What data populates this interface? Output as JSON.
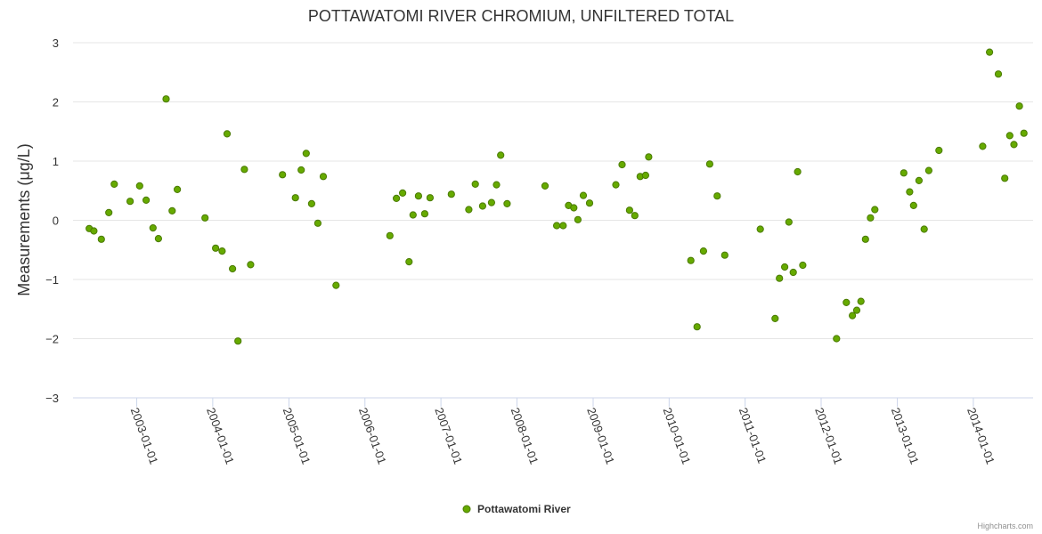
{
  "chart_data": {
    "type": "scatter",
    "title": "POTTAWATOMI RIVER CHROMIUM, UNFILTERED TOTAL",
    "ylabel": "Measurements (μg/L)",
    "xlabel": "",
    "ylim": [
      -3,
      3
    ],
    "yticks": [
      "3",
      "2",
      "1",
      "0",
      "−1",
      "−2",
      "−3"
    ],
    "xlim": [
      "2002-03-01",
      "2014-10-15"
    ],
    "xtick_dates": [
      "2003-01-01",
      "2004-01-01",
      "2005-01-01",
      "2006-01-01",
      "2007-01-01",
      "2008-01-01",
      "2009-01-01",
      "2010-01-01",
      "2011-01-01",
      "2012-01-01",
      "2013-01-01",
      "2014-01-01"
    ],
    "xtick_labels": [
      "2003-01-01",
      "2004-01-01",
      "2005-01-01",
      "2006-01-01",
      "2007-01-01",
      "2008-01-01",
      "2009-01-01",
      "2010-01-01",
      "2011-01-01",
      "2012-01-01",
      "2013-01-01",
      "2014-01-01"
    ],
    "grid": "horizontal",
    "legend_position": "bottom-center",
    "colors": {
      "marker_fill": "#66aa00",
      "marker_stroke": "#4a7a00",
      "grid": "#e6e6e6",
      "axis": "#ccd6eb"
    },
    "series": [
      {
        "name": "Pottawatomi River",
        "points": [
          [
            "2002-05-18",
            -0.14
          ],
          [
            "2002-06-09",
            -0.18
          ],
          [
            "2002-07-15",
            -0.32
          ],
          [
            "2002-08-20",
            0.13
          ],
          [
            "2002-09-15",
            0.61
          ],
          [
            "2002-11-30",
            0.32
          ],
          [
            "2003-01-15",
            0.58
          ],
          [
            "2003-02-15",
            0.34
          ],
          [
            "2003-03-20",
            -0.13
          ],
          [
            "2003-04-15",
            -0.31
          ],
          [
            "2003-05-22",
            2.05
          ],
          [
            "2003-06-20",
            0.16
          ],
          [
            "2003-07-15",
            0.52
          ],
          [
            "2003-11-25",
            0.04
          ],
          [
            "2004-01-15",
            -0.47
          ],
          [
            "2004-02-15",
            -0.52
          ],
          [
            "2004-03-10",
            1.46
          ],
          [
            "2004-04-05",
            -0.82
          ],
          [
            "2004-05-01",
            -2.04
          ],
          [
            "2004-06-01",
            0.86
          ],
          [
            "2004-07-01",
            -0.75
          ],
          [
            "2004-12-01",
            0.77
          ],
          [
            "2005-02-01",
            0.38
          ],
          [
            "2005-03-01",
            0.85
          ],
          [
            "2005-03-25",
            1.13
          ],
          [
            "2005-04-20",
            0.28
          ],
          [
            "2005-05-20",
            -0.05
          ],
          [
            "2005-06-15",
            0.74
          ],
          [
            "2005-08-15",
            -1.1
          ],
          [
            "2006-05-01",
            -0.26
          ],
          [
            "2006-06-01",
            0.37
          ],
          [
            "2006-07-01",
            0.46
          ],
          [
            "2006-08-01",
            -0.7
          ],
          [
            "2006-08-20",
            0.09
          ],
          [
            "2006-09-15",
            0.41
          ],
          [
            "2006-10-15",
            0.11
          ],
          [
            "2006-11-10",
            0.38
          ],
          [
            "2007-02-20",
            0.44
          ],
          [
            "2007-05-15",
            0.18
          ],
          [
            "2007-06-15",
            0.61
          ],
          [
            "2007-07-20",
            0.24
          ],
          [
            "2007-09-01",
            0.3
          ],
          [
            "2007-09-25",
            0.6
          ],
          [
            "2007-10-15",
            1.1
          ],
          [
            "2007-11-15",
            0.28
          ],
          [
            "2008-05-15",
            0.58
          ],
          [
            "2008-07-10",
            -0.09
          ],
          [
            "2008-08-10",
            -0.09
          ],
          [
            "2008-09-05",
            0.25
          ],
          [
            "2008-09-30",
            0.21
          ],
          [
            "2008-10-20",
            0.01
          ],
          [
            "2008-11-15",
            0.42
          ],
          [
            "2008-12-15",
            0.29
          ],
          [
            "2009-04-20",
            0.6
          ],
          [
            "2009-05-20",
            0.94
          ],
          [
            "2009-06-25",
            0.17
          ],
          [
            "2009-07-20",
            0.08
          ],
          [
            "2009-08-15",
            0.74
          ],
          [
            "2009-09-10",
            0.76
          ],
          [
            "2009-09-25",
            1.07
          ],
          [
            "2010-04-15",
            -0.68
          ],
          [
            "2010-05-15",
            -1.8
          ],
          [
            "2010-06-15",
            -0.52
          ],
          [
            "2010-07-15",
            0.95
          ],
          [
            "2010-08-20",
            0.41
          ],
          [
            "2010-09-25",
            -0.59
          ],
          [
            "2011-03-15",
            -0.15
          ],
          [
            "2011-05-25",
            -1.66
          ],
          [
            "2011-06-15",
            -0.98
          ],
          [
            "2011-07-10",
            -0.79
          ],
          [
            "2011-07-30",
            -0.03
          ],
          [
            "2011-08-20",
            -0.88
          ],
          [
            "2011-09-10",
            0.82
          ],
          [
            "2011-10-05",
            -0.76
          ],
          [
            "2012-03-15",
            -2.0
          ],
          [
            "2012-05-01",
            -1.39
          ],
          [
            "2012-05-30",
            -1.61
          ],
          [
            "2012-06-20",
            -1.52
          ],
          [
            "2012-07-10",
            -1.37
          ],
          [
            "2012-08-01",
            -0.32
          ],
          [
            "2012-08-25",
            0.04
          ],
          [
            "2012-09-15",
            0.18
          ],
          [
            "2013-02-01",
            0.8
          ],
          [
            "2013-03-01",
            0.48
          ],
          [
            "2013-03-20",
            0.25
          ],
          [
            "2013-04-15",
            0.67
          ],
          [
            "2013-05-10",
            -0.15
          ],
          [
            "2013-06-01",
            0.84
          ],
          [
            "2013-07-20",
            1.18
          ],
          [
            "2014-02-15",
            1.25
          ],
          [
            "2014-03-20",
            2.84
          ],
          [
            "2014-05-01",
            2.47
          ],
          [
            "2014-06-01",
            0.71
          ],
          [
            "2014-06-25",
            1.43
          ],
          [
            "2014-07-15",
            1.28
          ],
          [
            "2014-08-10",
            1.93
          ],
          [
            "2014-09-01",
            1.47
          ]
        ]
      }
    ]
  },
  "credits": "Highcharts.com"
}
